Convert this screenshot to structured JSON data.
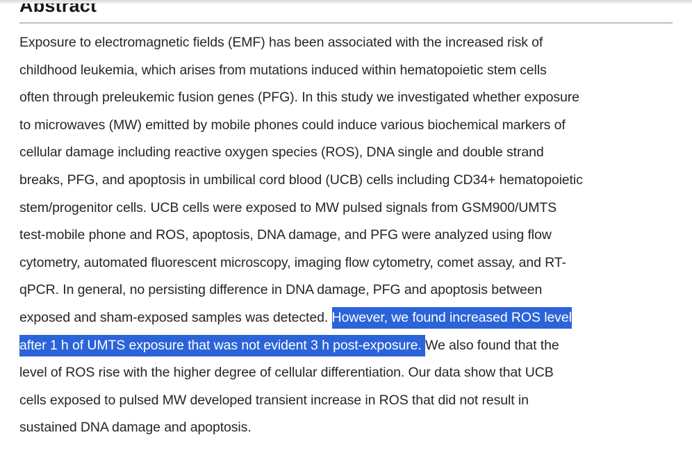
{
  "colors": {
    "selection_background": "#2b63d9",
    "selection_text": "#ffffff",
    "body_text": "#262626",
    "heading_text": "#171717",
    "divider": "#c0c0c0",
    "top_strip": "#d7d7d7"
  },
  "abstract": {
    "heading": "Abstract",
    "highlighted_text": "However, we found increased ROS level after 1 h of UMTS exposure that was not evident 3 h post-exposure.",
    "lines": [
      [
        {
          "t": "Exposure to electromagnetic fields (EMF) has been associated with the increased risk of",
          "hl": false
        }
      ],
      [
        {
          "t": "childhood leukemia, which arises from mutations induced within hematopoietic stem cells",
          "hl": false
        }
      ],
      [
        {
          "t": "often through preleukemic fusion genes (PFG). In this study we investigated whether exposure",
          "hl": false
        }
      ],
      [
        {
          "t": "to microwaves (MW) emitted by mobile phones could induce various biochemical markers of",
          "hl": false
        }
      ],
      [
        {
          "t": "cellular damage including reactive oxygen species (ROS), DNA single and double strand",
          "hl": false
        }
      ],
      [
        {
          "t": "breaks, PFG, and apoptosis in umbilical cord blood (UCB) cells including CD34+ hematopoietic",
          "hl": false
        }
      ],
      [
        {
          "t": "stem/progenitor cells. UCB cells were exposed to MW pulsed signals from GSM900/UMTS",
          "hl": false
        }
      ],
      [
        {
          "t": "test-mobile phone and ROS, apoptosis, DNA damage, and PFG were analyzed using flow",
          "hl": false
        }
      ],
      [
        {
          "t": "cytometry, automated fluorescent microscopy, imaging flow cytometry, comet assay, and RT-",
          "hl": false
        }
      ],
      [
        {
          "t": "qPCR. In general, no persisting difference in DNA damage, PFG and apoptosis between",
          "hl": false
        }
      ],
      [
        {
          "t": "exposed and sham-exposed samples was detected. ",
          "hl": false
        },
        {
          "t": "However, we found increased ROS level",
          "hl": true
        }
      ],
      [
        {
          "t": "after 1 h of UMTS exposure that was not evident 3 h post-exposure. ",
          "hl": true
        },
        {
          "t": "We also found that the",
          "hl": false
        }
      ],
      [
        {
          "t": "level of ROS rise with the higher degree of cellular differentiation. Our data show that UCB",
          "hl": false
        }
      ],
      [
        {
          "t": "cells exposed to pulsed MW developed transient increase in ROS that did not result in",
          "hl": false
        }
      ],
      [
        {
          "t": "sustained DNA damage and apoptosis.",
          "hl": false
        }
      ]
    ]
  }
}
